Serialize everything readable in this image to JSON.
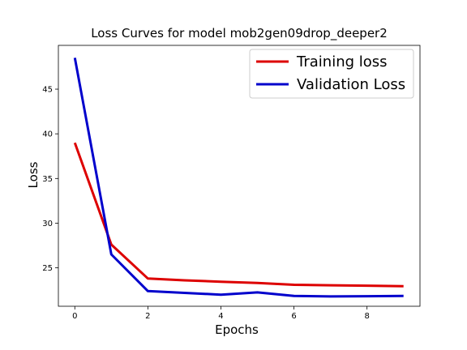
{
  "chart_data": {
    "type": "line",
    "title": "Loss Curves for model mob2gen09drop_deeper2",
    "xlabel": "Epochs",
    "ylabel": "Loss",
    "x": [
      0,
      1,
      2,
      3,
      4,
      5,
      6,
      7,
      8,
      9
    ],
    "series": [
      {
        "name": "Training loss",
        "color": "#dd0000",
        "values": [
          39.0,
          27.6,
          23.8,
          23.6,
          23.45,
          23.3,
          23.1,
          23.05,
          23.0,
          22.95
        ]
      },
      {
        "name": "Validation Loss",
        "color": "#0000cc",
        "values": [
          48.5,
          26.5,
          22.4,
          22.2,
          22.0,
          22.25,
          21.85,
          21.8,
          21.82,
          21.85
        ]
      }
    ],
    "xticks": [
      "0",
      "2",
      "4",
      "6",
      "8"
    ],
    "yticks": [
      "25",
      "30",
      "35",
      "40",
      "45"
    ],
    "xlim": [
      -0.45,
      9.45
    ],
    "ylim": [
      20.7,
      49.9
    ],
    "grid": false,
    "legend_position": "top-right"
  }
}
